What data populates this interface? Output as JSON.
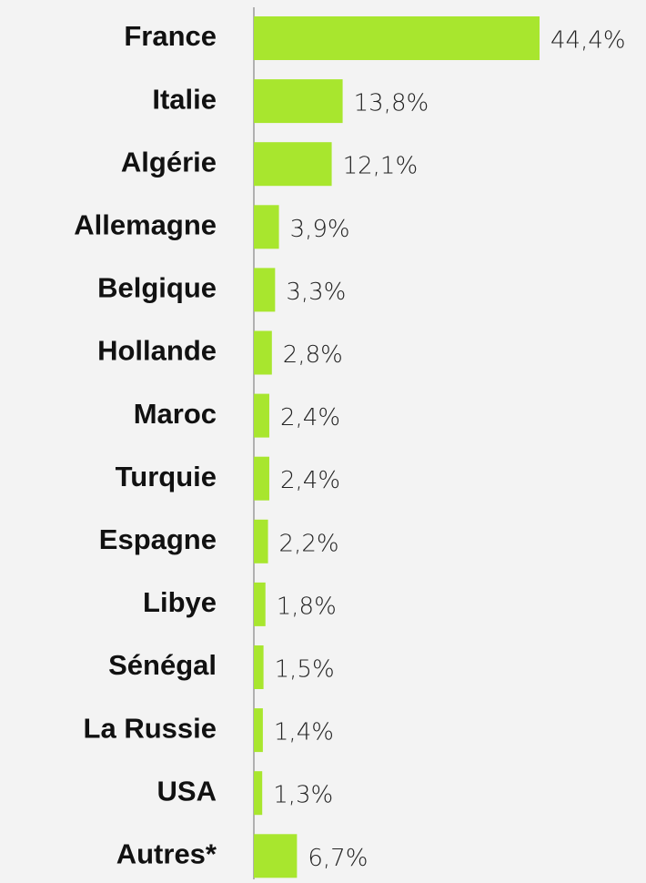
{
  "chart_data": {
    "type": "bar",
    "orientation": "horizontal",
    "categories": [
      "France",
      "Italie",
      "Algérie",
      "Allemagne",
      "Belgique",
      "Hollande",
      "Maroc",
      "Turquie",
      "Espagne",
      "Libye",
      "Sénégal",
      "La Russie",
      "USA",
      "Autres*"
    ],
    "values": [
      44.4,
      13.8,
      12.1,
      3.9,
      3.3,
      2.8,
      2.4,
      2.4,
      2.2,
      1.8,
      1.5,
      1.4,
      1.3,
      6.7
    ],
    "value_labels": [
      "44,4%",
      "13,8%",
      "12,1%",
      "3,9%",
      "3,3%",
      "2,8%",
      "2,4%",
      "2,4%",
      "2,2%",
      "1,8%",
      "1,5%",
      "1,4%",
      "1,3%",
      "6,7%"
    ],
    "color": "#a8e62e"
  }
}
